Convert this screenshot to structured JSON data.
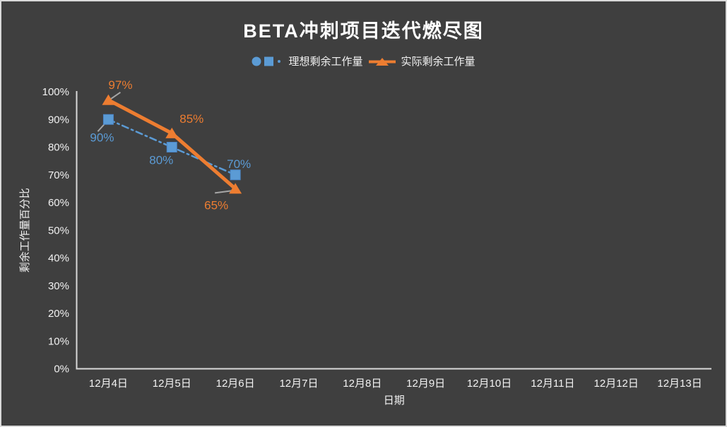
{
  "window": {
    "background": "#3F3F3F",
    "border_color": "#D9D9D9"
  },
  "chart_data": {
    "type": "line",
    "title": "BETA冲刺项目迭代燃尽图",
    "xlabel": "日期",
    "ylabel": "剩余工作量百分比",
    "categories": [
      "12月4日",
      "12月5日",
      "12月6日",
      "12月7日",
      "12月8日",
      "12月9日",
      "12月10日",
      "12月11日",
      "12月12日",
      "12月13日"
    ],
    "y_ticks": [
      "0%",
      "10%",
      "20%",
      "30%",
      "40%",
      "50%",
      "60%",
      "70%",
      "80%",
      "90%",
      "100%"
    ],
    "ylim": [
      0,
      100
    ],
    "grid": false,
    "legend_position": "top",
    "axis_color": "#D9D9D9",
    "text_color": "#F2F2F2",
    "label_leader_color": "#A6A6A6",
    "series": [
      {
        "name": "理想剩余工作量",
        "color": "#5B9BD5",
        "marker": "square",
        "line_style": "dash-dot",
        "line_width": 2.5,
        "points": [
          {
            "category": "12月4日",
            "value": 90,
            "label": "90%",
            "label_dx": -9,
            "label_dy": 25,
            "leader": {
              "x1": -15,
              "y1": 17,
              "x2": -6,
              "y2": 7
            }
          },
          {
            "category": "12月5日",
            "value": 80,
            "label": "80%",
            "label_dx": -15,
            "label_dy": 18
          },
          {
            "category": "12月6日",
            "value": 70,
            "label": "70%",
            "label_dx": 5,
            "label_dy": -16
          }
        ]
      },
      {
        "name": "实际剩余工作量",
        "color": "#ED7D31",
        "marker": "triangle",
        "line_style": "solid",
        "line_width": 5,
        "points": [
          {
            "category": "12月4日",
            "value": 97,
            "label": "97%",
            "label_dx": 17,
            "label_dy": -22,
            "leader": {
              "x1": 17,
              "y1": -11,
              "x2": 1,
              "y2": 0
            }
          },
          {
            "category": "12月5日",
            "value": 85,
            "label": "85%",
            "label_dx": 28,
            "label_dy": -21
          },
          {
            "category": "12月6日",
            "value": 65,
            "label": "65%",
            "label_dx": -27,
            "label_dy": 23,
            "leader": {
              "x1": -29,
              "y1": 6,
              "x2": -6,
              "y2": 3
            }
          }
        ]
      }
    ]
  }
}
